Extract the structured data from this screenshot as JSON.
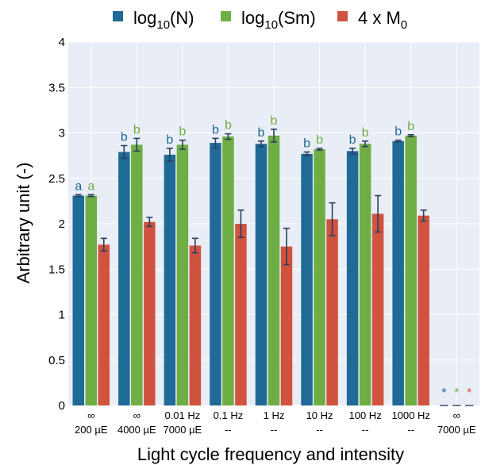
{
  "chart_data": {
    "type": "bar",
    "xlabel": "Light cycle frequency and intensity",
    "ylabel": "Arbitrary unit (-)",
    "ylim": [
      0,
      4
    ],
    "yticks": [
      "0",
      "0.5",
      "1",
      "1.5",
      "2",
      "2.5",
      "3",
      "3.5",
      "4"
    ],
    "grid": true,
    "legend_position": "top",
    "categories": [
      {
        "line1": "∞",
        "line2": "200 µE"
      },
      {
        "line1": "∞",
        "line2": "4000 µE"
      },
      {
        "line1": "0.01 Hz",
        "line2": "7000 µE"
      },
      {
        "line1": "0.1 Hz",
        "line2": "--"
      },
      {
        "line1": "1 Hz",
        "line2": "--"
      },
      {
        "line1": "10 Hz",
        "line2": "--"
      },
      {
        "line1": "100 Hz",
        "line2": "--"
      },
      {
        "line1": "1000 Hz",
        "line2": "--"
      },
      {
        "line1": "∞",
        "line2": "7000 µE"
      }
    ],
    "series": [
      {
        "name_main": "log",
        "name_sub": "10",
        "name_tail": "(N)",
        "color": "#1f6a96",
        "values": [
          2.31,
          2.79,
          2.76,
          2.89,
          2.88,
          2.77,
          2.8,
          2.91,
          0
        ],
        "errors": [
          0.01,
          0.07,
          0.07,
          0.05,
          0.03,
          0.02,
          0.03,
          0.01,
          0
        ],
        "sig": [
          "a",
          "b",
          "b",
          "b",
          "b",
          "b",
          "b",
          "b",
          "*"
        ]
      },
      {
        "name_main": "log",
        "name_sub": "10",
        "name_tail": "(Sm)",
        "color": "#6fae45",
        "values": [
          2.31,
          2.87,
          2.87,
          2.96,
          2.97,
          2.82,
          2.88,
          2.97,
          0
        ],
        "errors": [
          0.01,
          0.07,
          0.05,
          0.03,
          0.07,
          0.01,
          0.03,
          0.01,
          0
        ],
        "sig": [
          "a",
          "b",
          "b",
          "b",
          "b",
          "b",
          "b",
          "b",
          "*"
        ]
      },
      {
        "name_main": "4 x M",
        "name_sub": "0",
        "name_tail": "",
        "color": "#d05340",
        "values": [
          1.77,
          2.02,
          1.76,
          2.0,
          1.75,
          2.05,
          2.11,
          2.09,
          0
        ],
        "errors": [
          0.07,
          0.05,
          0.08,
          0.15,
          0.2,
          0.18,
          0.2,
          0.06,
          0
        ],
        "sig": [
          "",
          "",
          "",
          "",
          "",
          "",
          "",
          "",
          "*"
        ]
      }
    ]
  }
}
